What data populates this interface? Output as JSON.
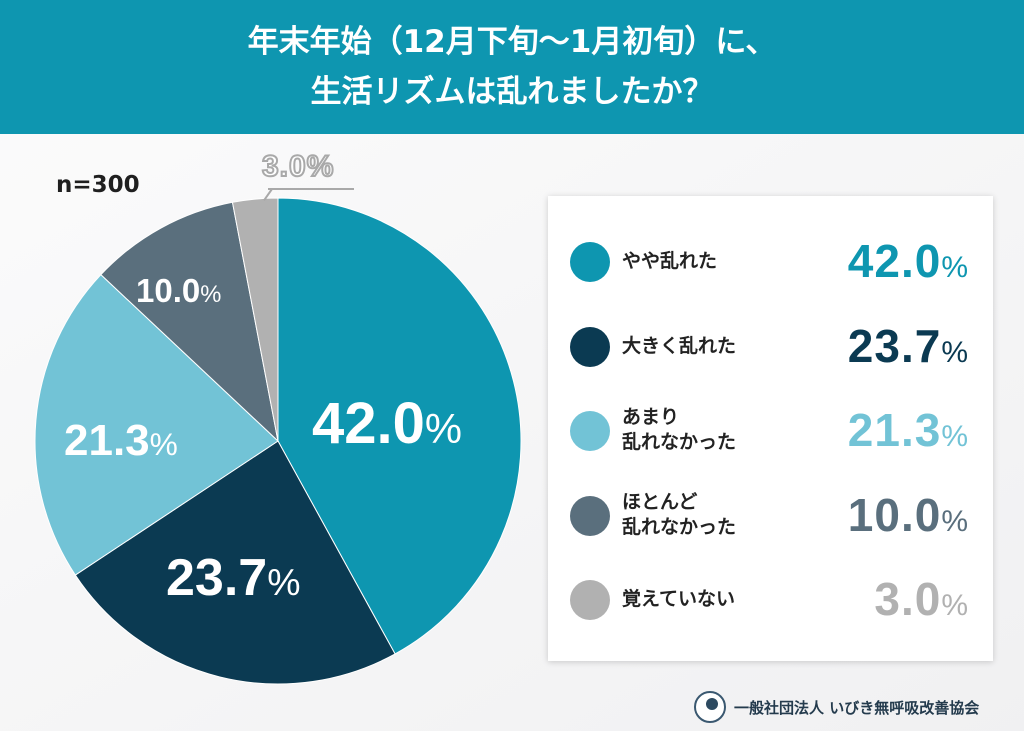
{
  "header": {
    "title_line1": "年末年始（12月下旬〜1月初旬）に、",
    "title_line2": "生活リズムは乱れましたか？",
    "background_color": "#0e96b0"
  },
  "sample_size": "n=300",
  "callout_small_slice": "3.0%",
  "chart_data": {
    "type": "pie",
    "title": "年末年始（12月下旬〜1月初旬）に、生活リズムは乱れましたか？",
    "n": 300,
    "categories": [
      "やや乱れた",
      "大きく乱れた",
      "あまり乱れなかった",
      "ほとんど乱れなかった",
      "覚えていない"
    ],
    "values": [
      42.0,
      23.7,
      21.3,
      10.0,
      3.0
    ],
    "colors": [
      "#0e96b0",
      "#0b3a52",
      "#72c3d6",
      "#5a6f7d",
      "#b1b1b1"
    ],
    "unit": "%",
    "start_angle": "12 o'clock, clockwise",
    "legend_position": "right"
  },
  "slice_labels": [
    {
      "num": "42.0",
      "pct": "%"
    },
    {
      "num": "23.7",
      "pct": "%"
    },
    {
      "num": "21.3",
      "pct": "%"
    },
    {
      "num": "10.0",
      "pct": "%"
    }
  ],
  "legend": [
    {
      "label_line1": "やや乱れた",
      "label_line2": "",
      "value": "42.0",
      "pct": "%",
      "color": "#0e96b0"
    },
    {
      "label_line1": "大きく乱れた",
      "label_line2": "",
      "value": "23.7",
      "pct": "%",
      "color": "#0b3a52"
    },
    {
      "label_line1": "あまり",
      "label_line2": "乱れなかった",
      "value": "21.3",
      "pct": "%",
      "color": "#72c3d6"
    },
    {
      "label_line1": "ほとんど",
      "label_line2": "乱れなかった",
      "value": "10.0",
      "pct": "%",
      "color": "#5a6f7d"
    },
    {
      "label_line1": "覚えていない",
      "label_line2": "",
      "value": "3.0",
      "pct": "%",
      "color": "#b1b1b1"
    }
  ],
  "footer": {
    "organization": "一般社団法人 いびき無呼吸改善協会"
  }
}
